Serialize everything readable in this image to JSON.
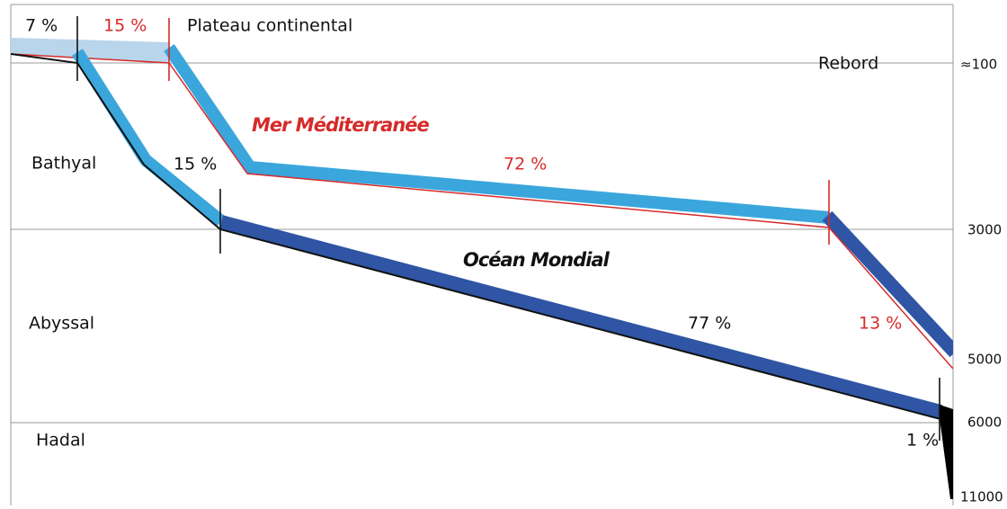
{
  "annotations": {
    "plateau": "Plateau continental",
    "rebord": "Rebord"
  },
  "zones": [
    "Bathyal",
    "Abyssal",
    "Hadal"
  ],
  "depth_labels": [
    "≈100",
    "3000",
    "5000",
    "6000",
    "11000"
  ],
  "ocean": {
    "name": "Océan Mondial",
    "percents": [
      "7 %",
      "15 %",
      "77 %",
      "1 %"
    ]
  },
  "mediterranean": {
    "name": "Mer Méditerranée",
    "percents": [
      "15 %",
      "72 %",
      "13 %"
    ]
  }
}
